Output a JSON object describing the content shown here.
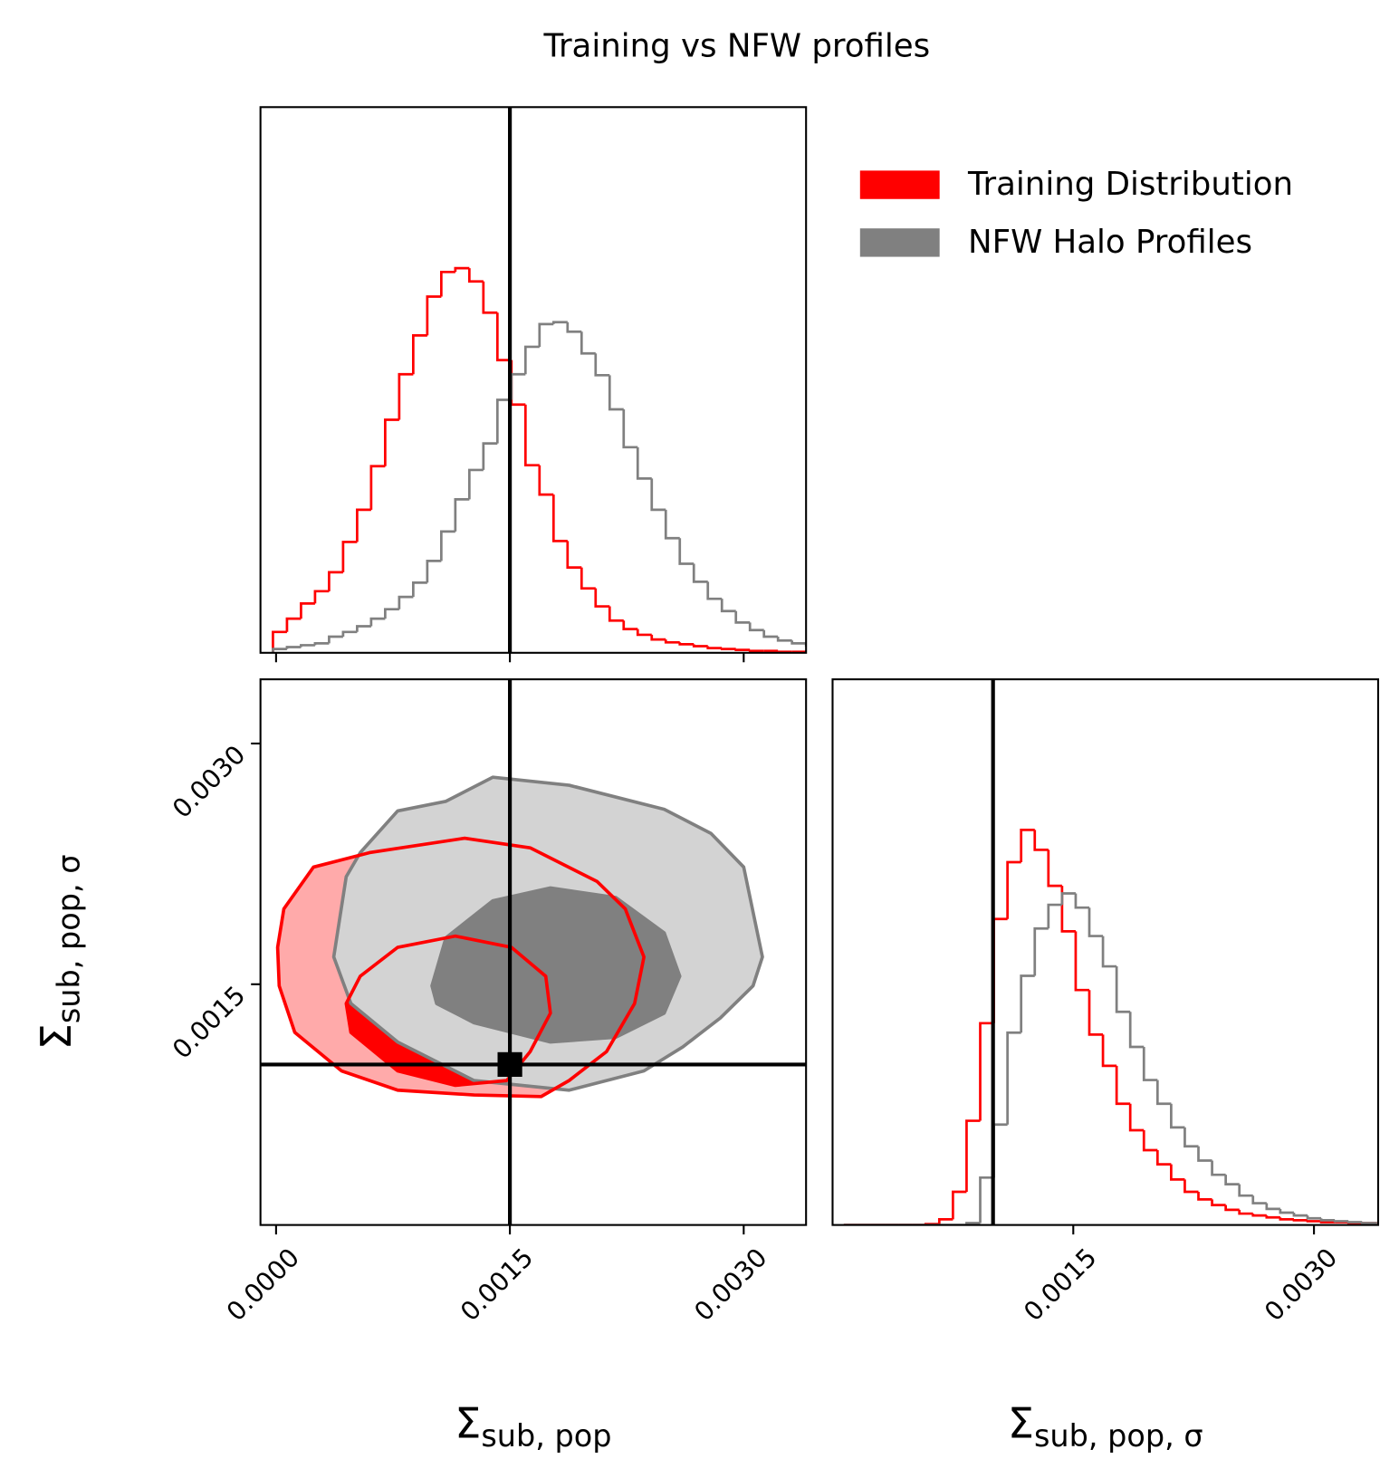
{
  "title": "Training vs NFW profiles",
  "chart_data": [
    {
      "type": "histogram",
      "legend": "upper right",
      "bins": [
        -2e-05,
        7e-05,
        0.00016,
        0.00025,
        0.00034,
        0.00043,
        0.00052,
        0.00061,
        0.0007,
        0.00079,
        0.00088,
        0.00097,
        0.00106,
        0.00115,
        0.00124,
        0.00133,
        0.00142,
        0.00151,
        0.0016,
        0.00169,
        0.00178,
        0.00187,
        0.00196,
        0.00205,
        0.00214,
        0.00223,
        0.00232,
        0.00241,
        0.0025,
        0.00259,
        0.00268,
        0.00277,
        0.00286,
        0.00295,
        0.00304,
        0.00313,
        0.00322,
        0.00331,
        0.0034,
        0.00349
      ],
      "series": [
        {
          "name": "Training Distribution",
          "color": "#ff0000",
          "values": [
            22,
            36,
            52,
            65,
            85,
            117,
            151,
            197,
            246,
            294,
            335,
            376,
            402,
            406,
            392,
            359,
            309,
            262,
            198,
            167,
            118,
            90,
            68,
            49,
            34,
            25,
            19,
            14,
            11,
            9,
            7,
            5,
            4,
            3,
            2,
            2,
            1,
            1,
            1
          ]
        },
        {
          "name": "NFW Halo Profiles",
          "color": "#808080",
          "values": [
            4,
            6,
            8,
            10,
            17,
            22,
            28,
            36,
            46,
            59,
            74,
            97,
            128,
            162,
            193,
            221,
            267,
            294,
            323,
            347,
            349,
            339,
            316,
            293,
            257,
            217,
            184,
            151,
            121,
            94,
            75,
            57,
            44,
            32,
            24,
            17,
            13,
            10,
            8
          ]
        }
      ],
      "xlim": [
        -0.0001,
        0.0034
      ],
      "xticks": [
        0,
        0.0015,
        0.003
      ],
      "ylim": [
        0,
        576
      ],
      "truth": 0.0015
    },
    {
      "type": "contour",
      "xlabel": {
        "symbol": "Σ",
        "subscript": "sub, pop"
      },
      "ylabel": {
        "symbol": "Σ",
        "subscript": "sub, pop, σ"
      },
      "series": [
        {
          "name": "Training Distribution",
          "color": "#ff0000",
          "levels": [
            {
              "fill": "#ffaaaa",
              "x": [
                1e-05,
                5e-05,
                0.00024,
                0.0006,
                0.00121,
                0.00163,
                0.00206,
                0.00224,
                0.00236,
                0.0023,
                0.00212,
                0.00188,
                0.0017,
                0.00127,
                0.00078,
                0.00042,
                0.00012,
                2e-05
              ],
              "y": [
                0.00173,
                0.00197,
                0.00223,
                0.00232,
                0.00241,
                0.00235,
                0.00214,
                0.00197,
                0.00167,
                0.00138,
                0.00108,
                0.0009,
                0.0008,
                0.00081,
                0.00084,
                0.00096,
                0.0012,
                0.00149
              ]
            },
            {
              "fill": "#ff0000",
              "x": [
                0.00045,
                0.00054,
                0.00078,
                0.00115,
                0.00151,
                0.00173,
                0.00176,
                0.00163,
                0.00148,
                0.00115,
                0.00078,
                0.00048
              ],
              "y": [
                0.00138,
                0.00155,
                0.00173,
                0.0018,
                0.00173,
                0.00155,
                0.00132,
                0.00108,
                0.0009,
                0.00087,
                0.00096,
                0.0012
              ]
            }
          ]
        },
        {
          "name": "NFW Halo Profiles",
          "color": "#808080",
          "levels": [
            {
              "fill": "#d3d3d3",
              "x": [
                0.00037,
                0.00045,
                0.00054,
                0.00078,
                0.00109,
                0.00139,
                0.00188,
                0.00249,
                0.00279,
                0.003,
                0.00312,
                0.00306,
                0.00285,
                0.00261,
                0.00236,
                0.00188,
                0.00127,
                0.00078,
                0.00048
              ],
              "y": [
                0.00167,
                0.00217,
                0.00232,
                0.00258,
                0.00264,
                0.00279,
                0.00274,
                0.00259,
                0.00244,
                0.00223,
                0.00167,
                0.00149,
                0.00129,
                0.00111,
                0.00096,
                0.00084,
                0.0009,
                0.00114,
                0.00138
              ]
            },
            {
              "fill": "#808080",
              "x": [
                0.001,
                0.00109,
                0.00139,
                0.00176,
                0.00218,
                0.00249,
                0.00259,
                0.00249,
                0.00218,
                0.00176,
                0.00127,
                0.00103
              ],
              "y": [
                0.00149,
                0.00179,
                0.00202,
                0.0021,
                0.00204,
                0.00182,
                0.00155,
                0.00132,
                0.00117,
                0.00114,
                0.00126,
                0.00138
              ]
            }
          ]
        }
      ],
      "xlim": [
        -0.0001,
        0.0034
      ],
      "xticks": [
        {
          "value": 0,
          "label": "0.0000"
        },
        {
          "value": 0.0015,
          "label": "0.0015"
        },
        {
          "value": 0.003,
          "label": "0.0030"
        }
      ],
      "ylim": [
        0,
        0.0034
      ],
      "yticks": [
        {
          "value": 0.0015,
          "label": "0.0015"
        },
        {
          "value": 0.003,
          "label": "0.0030"
        }
      ],
      "truth": [
        0.0015,
        0.001
      ]
    },
    {
      "type": "histogram",
      "xlabel": {
        "symbol": "Σ",
        "subscript": "sub, pop, σ"
      },
      "bins": [
        7e-05,
        0.000155,
        0.00024,
        0.000325,
        0.00041,
        0.000495,
        0.00058,
        0.000665,
        0.00075,
        0.000835,
        0.00092,
        0.001005,
        0.00109,
        0.001175,
        0.00126,
        0.001345,
        0.00143,
        0.001515,
        0.0016,
        0.001685,
        0.00177,
        0.001855,
        0.00194,
        0.002025,
        0.00211,
        0.002195,
        0.00228,
        0.002365,
        0.00245,
        0.002535,
        0.00262,
        0.002705,
        0.00279,
        0.002875,
        0.00296,
        0.003045,
        0.00313,
        0.003215,
        0.0033,
        0.003385
      ],
      "series": [
        {
          "name": "Training Distribution",
          "color": "#ff0000",
          "values": [
            0,
            0,
            0,
            0,
            0,
            0,
            1,
            6,
            35,
            110,
            213,
            323,
            383,
            417,
            396,
            358,
            310,
            248,
            201,
            168,
            128,
            100,
            79,
            64,
            48,
            35,
            27,
            21,
            16,
            12,
            10,
            8,
            6,
            5,
            4,
            3,
            3,
            2,
            2
          ]
        },
        {
          "name": "NFW Halo Profiles",
          "color": "#808080",
          "values": [
            0,
            0,
            0,
            0,
            0,
            0,
            0,
            0,
            0,
            2,
            50,
            106,
            203,
            263,
            313,
            338,
            350,
            335,
            305,
            273,
            225,
            188,
            153,
            128,
            103,
            83,
            68,
            53,
            43,
            31,
            23,
            17,
            13,
            10,
            7,
            5,
            4,
            3,
            2
          ]
        }
      ],
      "xlim": [
        0,
        0.0034
      ],
      "xticks": [
        {
          "value": 0.0015,
          "label": "0.0015"
        },
        {
          "value": 0.003,
          "label": "0.0030"
        }
      ],
      "ylim": [
        0,
        576
      ],
      "truth": 0.001
    }
  ]
}
